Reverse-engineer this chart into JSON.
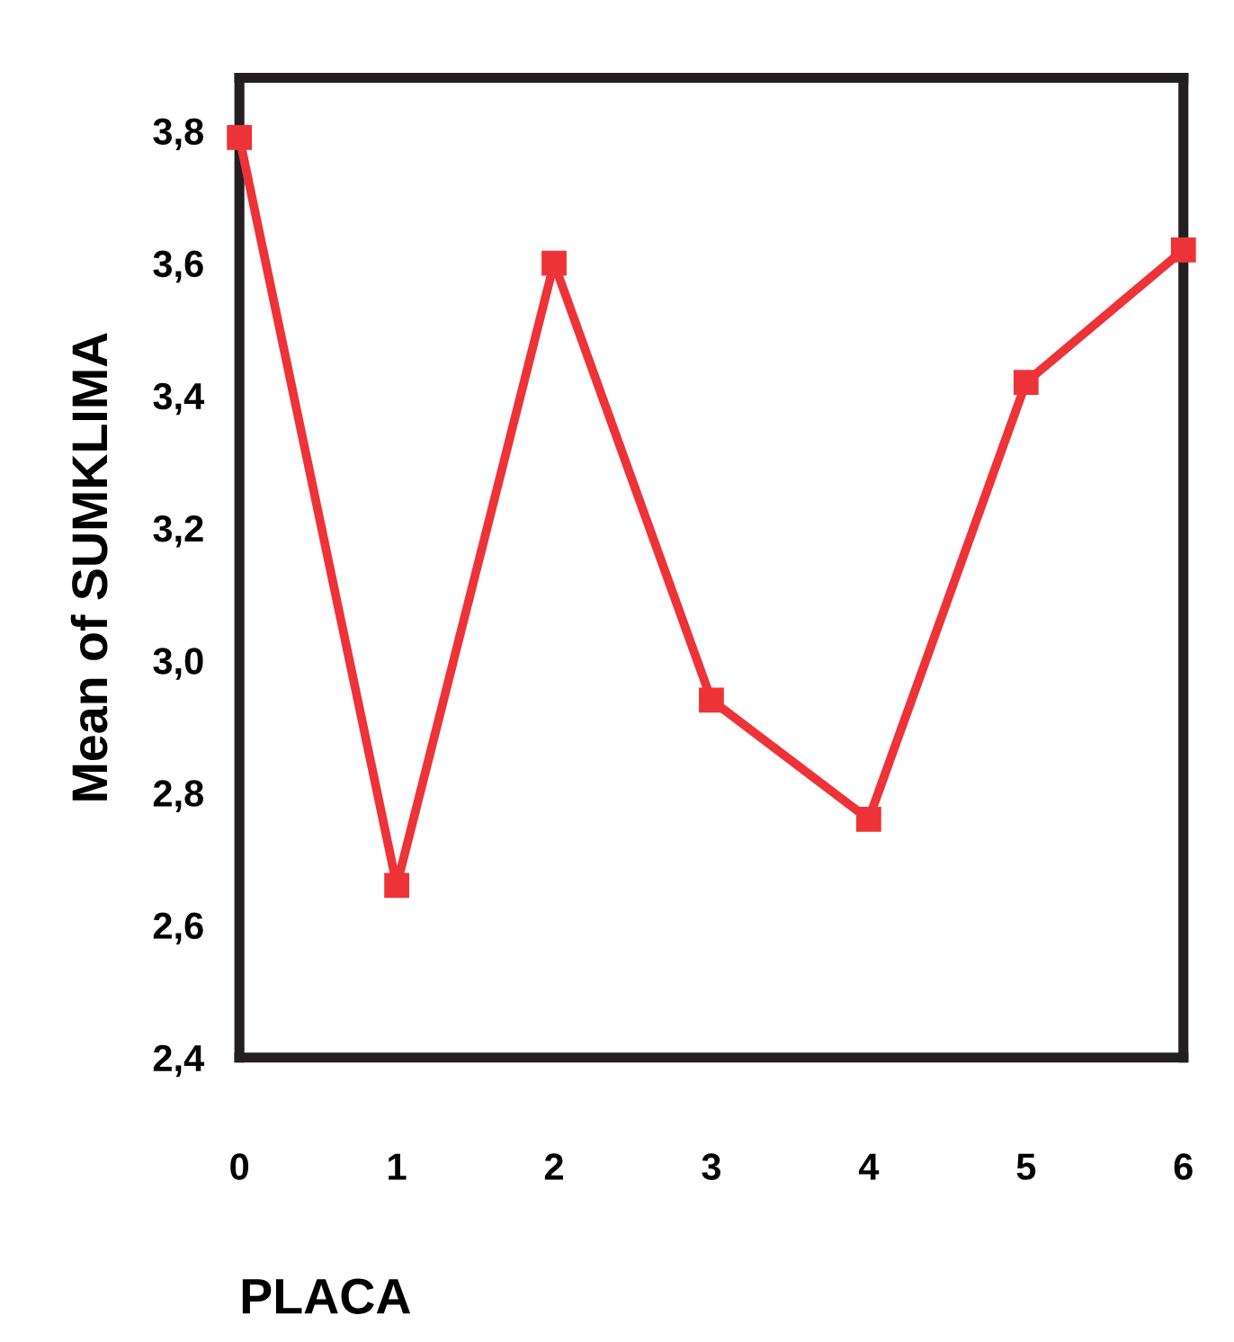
{
  "chart_data": {
    "type": "line",
    "xlabel": "PLACA",
    "ylabel": "Mean of SUMKLIMA",
    "x": [
      0,
      1,
      2,
      3,
      4,
      5,
      6
    ],
    "series": [
      {
        "color": "#ee3338",
        "values": [
          3.79,
          2.66,
          3.6,
          2.94,
          2.76,
          3.42,
          3.62
        ]
      }
    ],
    "xlim": [
      0,
      6
    ],
    "xticks": [
      0,
      1,
      2,
      3,
      4,
      5,
      6
    ],
    "ylim": [
      2.4,
      3.88
    ],
    "yticks": [
      {
        "value": 2.4,
        "label": "2,4"
      },
      {
        "value": 2.6,
        "label": "2,6"
      },
      {
        "value": 2.8,
        "label": "2,8"
      },
      {
        "value": 3.0,
        "label": "3,0"
      },
      {
        "value": 3.2,
        "label": "3,2"
      },
      {
        "value": 3.4,
        "label": "3,4"
      },
      {
        "value": 3.6,
        "label": "3,6"
      },
      {
        "value": 3.8,
        "label": "3,8"
      }
    ],
    "marker": "square",
    "line_style": "solid",
    "grid": false,
    "legend": false
  }
}
